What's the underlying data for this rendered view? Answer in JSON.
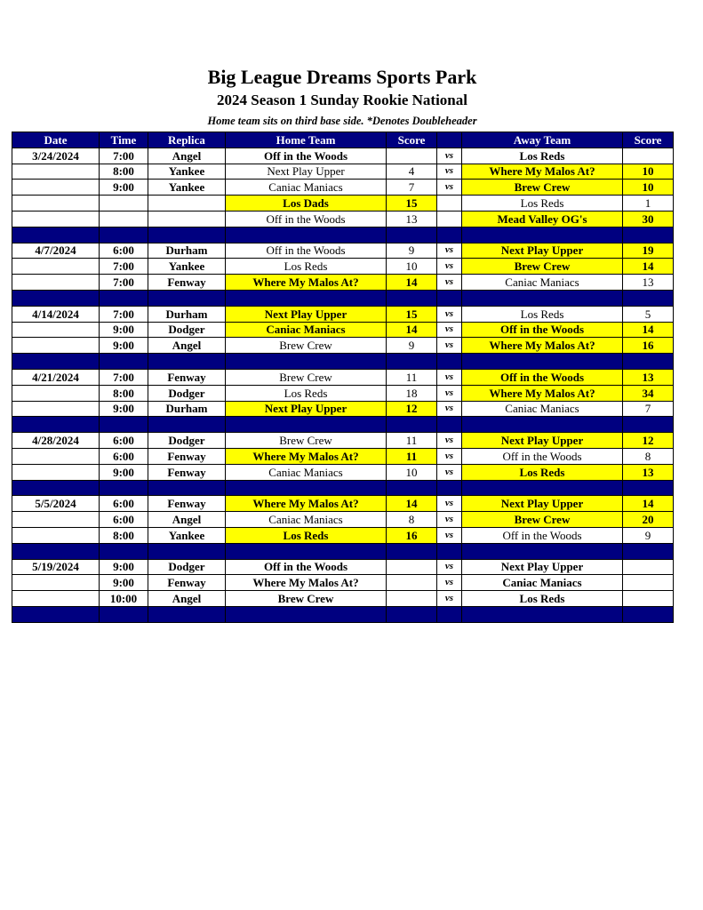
{
  "title": "Big League Dreams Sports Park",
  "subtitle": "2024 Season 1 Sunday Rookie National",
  "note": "Home team sits on third base side.  *Denotes Doubleheader",
  "colors": {
    "header": "#000080",
    "winner_highlight": "#ffff00"
  },
  "columns": [
    "Date",
    "Time",
    "Replica",
    "Home Team",
    "Score",
    "",
    "Away Team",
    "Score"
  ],
  "weeks": [
    {
      "date": "3/24/2024",
      "games": [
        {
          "time": "7:00",
          "replica": "Angel",
          "home": "Off in the Woods",
          "home_score": "",
          "vs": "vs",
          "away": "Los Reds",
          "away_score": "",
          "winner": ""
        },
        {
          "time": "8:00",
          "replica": "Yankee",
          "home": "Next Play Upper",
          "home_score": "4",
          "vs": "vs",
          "away": "Where My Malos At?",
          "away_score": "10",
          "winner": "away"
        },
        {
          "time": "9:00",
          "replica": "Yankee",
          "home": "Caniac Maniacs",
          "home_score": "7",
          "vs": "vs",
          "away": "Brew Crew",
          "away_score": "10",
          "winner": "away"
        },
        {
          "time": "",
          "replica": "",
          "home": "Los Dads",
          "home_score": "15",
          "vs": "",
          "away": "Los Reds",
          "away_score": "1",
          "winner": "home"
        },
        {
          "time": "",
          "replica": "",
          "home": "Off in the Woods",
          "home_score": "13",
          "vs": "",
          "away": "Mead Valley OG's",
          "away_score": "30",
          "winner": "away"
        }
      ]
    },
    {
      "date": "4/7/2024",
      "games": [
        {
          "time": "6:00",
          "replica": "Durham",
          "home": "Off in the Woods",
          "home_score": "9",
          "vs": "vs",
          "away": "Next Play Upper",
          "away_score": "19",
          "winner": "away"
        },
        {
          "time": "7:00",
          "replica": "Yankee",
          "home": "Los Reds",
          "home_score": "10",
          "vs": "vs",
          "away": "Brew Crew",
          "away_score": "14",
          "winner": "away"
        },
        {
          "time": "7:00",
          "replica": "Fenway",
          "home": "Where My Malos At?",
          "home_score": "14",
          "vs": "vs",
          "away": "Caniac Maniacs",
          "away_score": "13",
          "winner": "home"
        }
      ]
    },
    {
      "date": "4/14/2024",
      "games": [
        {
          "time": "7:00",
          "replica": "Durham",
          "home": "Next Play Upper",
          "home_score": "15",
          "vs": "vs",
          "away": "Los Reds",
          "away_score": "5",
          "winner": "home"
        },
        {
          "time": "9:00",
          "replica": "Dodger",
          "home": "Caniac Maniacs",
          "home_score": "14",
          "vs": "vs",
          "away": "Off in the Woods",
          "away_score": "14",
          "winner": "both"
        },
        {
          "time": "9:00",
          "replica": "Angel",
          "home": "Brew Crew",
          "home_score": "9",
          "vs": "vs",
          "away": "Where My Malos At?",
          "away_score": "16",
          "winner": "away"
        }
      ]
    },
    {
      "date": "4/21/2024",
      "games": [
        {
          "time": "7:00",
          "replica": "Fenway",
          "home": "Brew Crew",
          "home_score": "11",
          "vs": "vs",
          "away": "Off in the Woods",
          "away_score": "13",
          "winner": "away"
        },
        {
          "time": "8:00",
          "replica": "Dodger",
          "home": "Los Reds",
          "home_score": "18",
          "vs": "vs",
          "away": "Where My Malos At?",
          "away_score": "34",
          "winner": "away"
        },
        {
          "time": "9:00",
          "replica": "Durham",
          "home": "Next Play Upper",
          "home_score": "12",
          "vs": "vs",
          "away": "Caniac Maniacs",
          "away_score": "7",
          "winner": "home"
        }
      ]
    },
    {
      "date": "4/28/2024",
      "games": [
        {
          "time": "6:00",
          "replica": "Dodger",
          "home": "Brew Crew",
          "home_score": "11",
          "vs": "vs",
          "away": "Next Play Upper",
          "away_score": "12",
          "winner": "away"
        },
        {
          "time": "6:00",
          "replica": "Fenway",
          "home": "Where My Malos At?",
          "home_score": "11",
          "vs": "vs",
          "away": "Off in the Woods",
          "away_score": "8",
          "winner": "home"
        },
        {
          "time": "9:00",
          "replica": "Fenway",
          "home": "Caniac Maniacs",
          "home_score": "10",
          "vs": "vs",
          "away": "Los Reds",
          "away_score": "13",
          "winner": "away"
        }
      ]
    },
    {
      "date": "5/5/2024",
      "games": [
        {
          "time": "6:00",
          "replica": "Fenway",
          "home": "Where My Malos At?",
          "home_score": "14",
          "vs": "vs",
          "away": "Next Play Upper",
          "away_score": "14",
          "winner": "both"
        },
        {
          "time": "6:00",
          "replica": "Angel",
          "home": "Caniac Maniacs",
          "home_score": "8",
          "vs": "vs",
          "away": "Brew Crew",
          "away_score": "20",
          "winner": "away"
        },
        {
          "time": "8:00",
          "replica": "Yankee",
          "home": "Los Reds",
          "home_score": "16",
          "vs": "vs",
          "away": "Off in the Woods",
          "away_score": "9",
          "winner": "home"
        }
      ]
    },
    {
      "date": "5/19/2024",
      "games": [
        {
          "time": "9:00",
          "replica": "Dodger",
          "home": "Off in the Woods",
          "home_score": "",
          "vs": "vs",
          "away": "Next Play Upper",
          "away_score": "",
          "winner": ""
        },
        {
          "time": "9:00",
          "replica": "Fenway",
          "home": "Where My Malos At?",
          "home_score": "",
          "vs": "vs",
          "away": "Caniac Maniacs",
          "away_score": "",
          "winner": ""
        },
        {
          "time": "10:00",
          "replica": "Angel",
          "home": "Brew Crew",
          "home_score": "",
          "vs": "vs",
          "away": "Los Reds",
          "away_score": "",
          "winner": ""
        }
      ]
    }
  ]
}
